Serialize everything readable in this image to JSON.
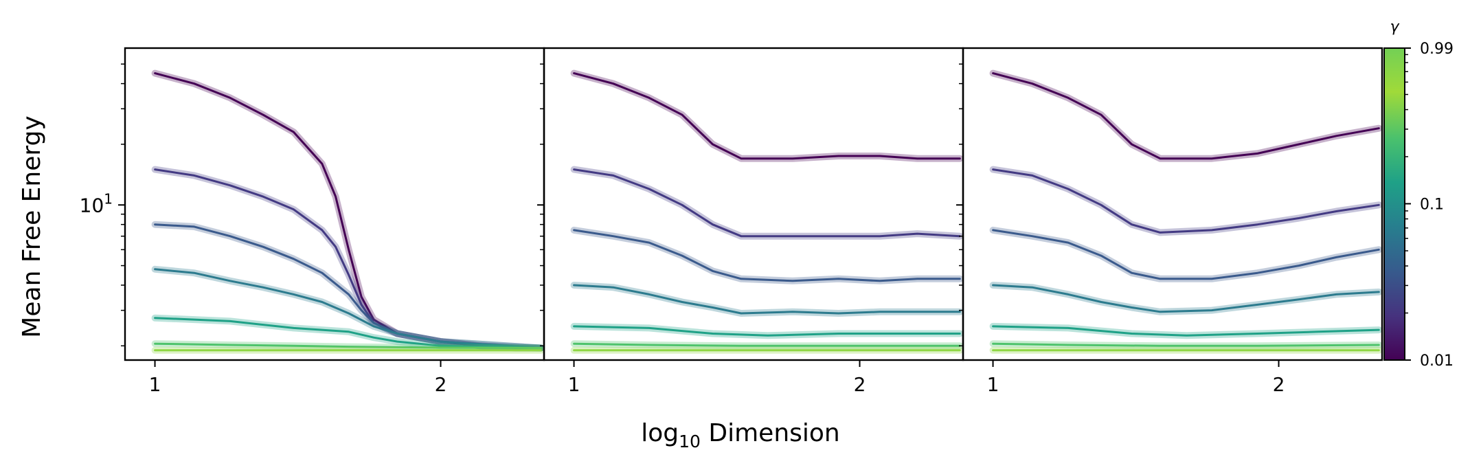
{
  "figure": {
    "ylabel": "Mean Free Energy",
    "xlabel_main": "log",
    "xlabel_sub": "10",
    "xlabel_rest": " Dimension"
  },
  "colorbar": {
    "title": "γ",
    "ticks": [
      {
        "value": 0.99,
        "label": "0.99"
      },
      {
        "value": 0.1,
        "label": "0.1"
      },
      {
        "value": 0.01,
        "label": "0.01"
      }
    ],
    "scale": "log",
    "colormap": "viridis"
  },
  "colors": {
    "g0": "#440154",
    "g1": "#433a83",
    "g2": "#3a5a8c",
    "g3": "#2c7b8e",
    "g4": "#1fa187",
    "g5": "#4ec36b",
    "g6": "#8fd744"
  },
  "chart_data": [
    {
      "type": "line",
      "panel": "left",
      "xlabel": "log10 Dimension",
      "ylabel": "Mean Free Energy",
      "yscale": "log",
      "ylim": [
        1.7,
        60
      ],
      "xlim": [
        0.93,
        2.57
      ],
      "x_ticks": [
        {
          "value": 1,
          "label": "1"
        },
        {
          "value": 2,
          "label": "2"
        }
      ],
      "y_ticks": [
        {
          "value": 10,
          "label": "10",
          "exp": "1"
        }
      ],
      "series": [
        {
          "gamma": 0.01,
          "color": "#440154",
          "points": [
            [
              1.0,
              45
            ],
            [
              1.1,
              40
            ],
            [
              1.2,
              34
            ],
            [
              1.3,
              28
            ],
            [
              1.4,
              23
            ],
            [
              1.5,
              16
            ],
            [
              1.55,
              11
            ],
            [
              1.6,
              6
            ],
            [
              1.65,
              3.5
            ],
            [
              1.7,
              2.7
            ],
            [
              1.8,
              2.3
            ],
            [
              2.0,
              2.1
            ],
            [
              2.2,
              2.0
            ],
            [
              2.4,
              1.95
            ],
            [
              2.55,
              1.95
            ]
          ]
        },
        {
          "gamma": 0.1,
          "color": "#433a83",
          "points": [
            [
              1.0,
              15
            ],
            [
              1.1,
              14
            ],
            [
              1.2,
              12.5
            ],
            [
              1.3,
              11
            ],
            [
              1.4,
              9.5
            ],
            [
              1.5,
              7.5
            ],
            [
              1.55,
              6.2
            ],
            [
              1.6,
              4.5
            ],
            [
              1.65,
              3.2
            ],
            [
              1.7,
              2.6
            ],
            [
              1.8,
              2.3
            ],
            [
              2.0,
              2.1
            ],
            [
              2.2,
              2.0
            ],
            [
              2.55,
              1.95
            ]
          ]
        },
        {
          "gamma": 0.2,
          "color": "#3a5a8c",
          "points": [
            [
              1.0,
              8
            ],
            [
              1.1,
              7.8
            ],
            [
              1.2,
              7
            ],
            [
              1.3,
              6.2
            ],
            [
              1.4,
              5.4
            ],
            [
              1.5,
              4.6
            ],
            [
              1.6,
              3.6
            ],
            [
              1.65,
              3
            ],
            [
              1.7,
              2.6
            ],
            [
              1.8,
              2.3
            ],
            [
              2.0,
              2.1
            ],
            [
              2.55,
              1.95
            ]
          ]
        },
        {
          "gamma": 0.4,
          "color": "#2c7b8e",
          "points": [
            [
              1.0,
              4.8
            ],
            [
              1.1,
              4.6
            ],
            [
              1.2,
              4.2
            ],
            [
              1.3,
              3.9
            ],
            [
              1.4,
              3.6
            ],
            [
              1.5,
              3.3
            ],
            [
              1.6,
              2.9
            ],
            [
              1.7,
              2.5
            ],
            [
              1.8,
              2.3
            ],
            [
              2.0,
              2.1
            ],
            [
              2.55,
              1.95
            ]
          ]
        },
        {
          "gamma": 0.7,
          "color": "#1fa187",
          "points": [
            [
              1.0,
              2.75
            ],
            [
              1.2,
              2.65
            ],
            [
              1.4,
              2.45
            ],
            [
              1.6,
              2.35
            ],
            [
              1.7,
              2.2
            ],
            [
              1.8,
              2.1
            ],
            [
              2.0,
              2.0
            ],
            [
              2.55,
              1.95
            ]
          ]
        },
        {
          "gamma": 0.9,
          "color": "#4ec36b",
          "points": [
            [
              1.0,
              2.05
            ],
            [
              1.2,
              2.02
            ],
            [
              1.4,
              2.0
            ],
            [
              1.6,
              1.98
            ],
            [
              2.0,
              1.96
            ],
            [
              2.55,
              1.95
            ]
          ]
        },
        {
          "gamma": 0.99,
          "color": "#8fd744",
          "points": [
            [
              1.0,
              1.9
            ],
            [
              1.5,
              1.9
            ],
            [
              2.0,
              1.9
            ],
            [
              2.55,
              1.9
            ]
          ]
        }
      ]
    },
    {
      "type": "line",
      "panel": "middle",
      "yscale": "log",
      "ylim": [
        1.7,
        60
      ],
      "xlim": [
        0.93,
        2.57
      ],
      "x_ticks": [
        {
          "value": 1,
          "label": "1"
        },
        {
          "value": 2,
          "label": "2"
        }
      ],
      "series": [
        {
          "gamma": 0.01,
          "color": "#440154",
          "points": [
            [
              1.0,
              45
            ],
            [
              1.1,
              40
            ],
            [
              1.2,
              34
            ],
            [
              1.3,
              28
            ],
            [
              1.4,
              20
            ],
            [
              1.5,
              17
            ],
            [
              1.7,
              17
            ],
            [
              1.9,
              17.5
            ],
            [
              2.1,
              17.5
            ],
            [
              2.3,
              17
            ],
            [
              2.55,
              17
            ]
          ]
        },
        {
          "gamma": 0.1,
          "color": "#433a83",
          "points": [
            [
              1.0,
              15
            ],
            [
              1.1,
              14
            ],
            [
              1.2,
              12
            ],
            [
              1.3,
              10
            ],
            [
              1.4,
              8
            ],
            [
              1.5,
              7
            ],
            [
              1.7,
              7
            ],
            [
              1.9,
              7
            ],
            [
              2.1,
              7
            ],
            [
              2.3,
              7.2
            ],
            [
              2.55,
              7
            ]
          ]
        },
        {
          "gamma": 0.2,
          "color": "#3a5a8c",
          "points": [
            [
              1.0,
              7.5
            ],
            [
              1.1,
              7
            ],
            [
              1.2,
              6.5
            ],
            [
              1.3,
              5.6
            ],
            [
              1.4,
              4.7
            ],
            [
              1.5,
              4.3
            ],
            [
              1.7,
              4.2
            ],
            [
              1.9,
              4.3
            ],
            [
              2.1,
              4.2
            ],
            [
              2.3,
              4.3
            ],
            [
              2.55,
              4.3
            ]
          ]
        },
        {
          "gamma": 0.4,
          "color": "#2c7b8e",
          "points": [
            [
              1.0,
              4
            ],
            [
              1.1,
              3.9
            ],
            [
              1.2,
              3.6
            ],
            [
              1.3,
              3.3
            ],
            [
              1.4,
              3.1
            ],
            [
              1.5,
              2.9
            ],
            [
              1.7,
              2.95
            ],
            [
              1.9,
              2.9
            ],
            [
              2.1,
              2.95
            ],
            [
              2.3,
              2.95
            ],
            [
              2.55,
              2.95
            ]
          ]
        },
        {
          "gamma": 0.7,
          "color": "#1fa187",
          "points": [
            [
              1.0,
              2.5
            ],
            [
              1.2,
              2.45
            ],
            [
              1.4,
              2.3
            ],
            [
              1.6,
              2.25
            ],
            [
              1.9,
              2.3
            ],
            [
              2.2,
              2.3
            ],
            [
              2.55,
              2.3
            ]
          ]
        },
        {
          "gamma": 0.9,
          "color": "#4ec36b",
          "points": [
            [
              1.0,
              2.05
            ],
            [
              1.2,
              2.02
            ],
            [
              1.5,
              2.0
            ],
            [
              1.9,
              2.0
            ],
            [
              2.55,
              2.0
            ]
          ]
        },
        {
          "gamma": 0.99,
          "color": "#8fd744",
          "points": [
            [
              1.0,
              1.9
            ],
            [
              1.5,
              1.9
            ],
            [
              2.0,
              1.9
            ],
            [
              2.55,
              1.9
            ]
          ]
        }
      ]
    },
    {
      "type": "line",
      "panel": "right",
      "yscale": "log",
      "ylim": [
        1.7,
        60
      ],
      "xlim": [
        0.93,
        2.57
      ],
      "x_ticks": [
        {
          "value": 1,
          "label": "1"
        },
        {
          "value": 2,
          "label": "2"
        }
      ],
      "series": [
        {
          "gamma": 0.01,
          "color": "#440154",
          "points": [
            [
              1.0,
              45
            ],
            [
              1.1,
              40
            ],
            [
              1.2,
              34
            ],
            [
              1.3,
              28
            ],
            [
              1.4,
              20
            ],
            [
              1.5,
              17
            ],
            [
              1.7,
              17
            ],
            [
              1.9,
              18
            ],
            [
              2.1,
              20
            ],
            [
              2.3,
              22
            ],
            [
              2.55,
              24
            ]
          ]
        },
        {
          "gamma": 0.1,
          "color": "#433a83",
          "points": [
            [
              1.0,
              15
            ],
            [
              1.1,
              14
            ],
            [
              1.2,
              12
            ],
            [
              1.3,
              10
            ],
            [
              1.4,
              8
            ],
            [
              1.5,
              7.3
            ],
            [
              1.7,
              7.5
            ],
            [
              1.9,
              8
            ],
            [
              2.1,
              8.6
            ],
            [
              2.3,
              9.3
            ],
            [
              2.55,
              10
            ]
          ]
        },
        {
          "gamma": 0.2,
          "color": "#3a5a8c",
          "points": [
            [
              1.0,
              7.5
            ],
            [
              1.1,
              7
            ],
            [
              1.2,
              6.5
            ],
            [
              1.3,
              5.6
            ],
            [
              1.4,
              4.6
            ],
            [
              1.5,
              4.3
            ],
            [
              1.7,
              4.3
            ],
            [
              1.9,
              4.6
            ],
            [
              2.1,
              5
            ],
            [
              2.3,
              5.5
            ],
            [
              2.55,
              6
            ]
          ]
        },
        {
          "gamma": 0.4,
          "color": "#2c7b8e",
          "points": [
            [
              1.0,
              4
            ],
            [
              1.1,
              3.9
            ],
            [
              1.2,
              3.6
            ],
            [
              1.3,
              3.3
            ],
            [
              1.4,
              3.1
            ],
            [
              1.5,
              2.95
            ],
            [
              1.7,
              3.0
            ],
            [
              1.9,
              3.2
            ],
            [
              2.1,
              3.4
            ],
            [
              2.3,
              3.6
            ],
            [
              2.55,
              3.7
            ]
          ]
        },
        {
          "gamma": 0.7,
          "color": "#1fa187",
          "points": [
            [
              1.0,
              2.5
            ],
            [
              1.2,
              2.45
            ],
            [
              1.4,
              2.3
            ],
            [
              1.6,
              2.25
            ],
            [
              1.9,
              2.3
            ],
            [
              2.2,
              2.35
            ],
            [
              2.55,
              2.4
            ]
          ]
        },
        {
          "gamma": 0.9,
          "color": "#4ec36b",
          "points": [
            [
              1.0,
              2.05
            ],
            [
              1.2,
              2.02
            ],
            [
              1.5,
              2.0
            ],
            [
              1.9,
              2.0
            ],
            [
              2.55,
              2.02
            ]
          ]
        },
        {
          "gamma": 0.99,
          "color": "#8fd744",
          "points": [
            [
              1.0,
              1.9
            ],
            [
              1.5,
              1.9
            ],
            [
              2.0,
              1.9
            ],
            [
              2.55,
              1.9
            ]
          ]
        }
      ]
    }
  ]
}
